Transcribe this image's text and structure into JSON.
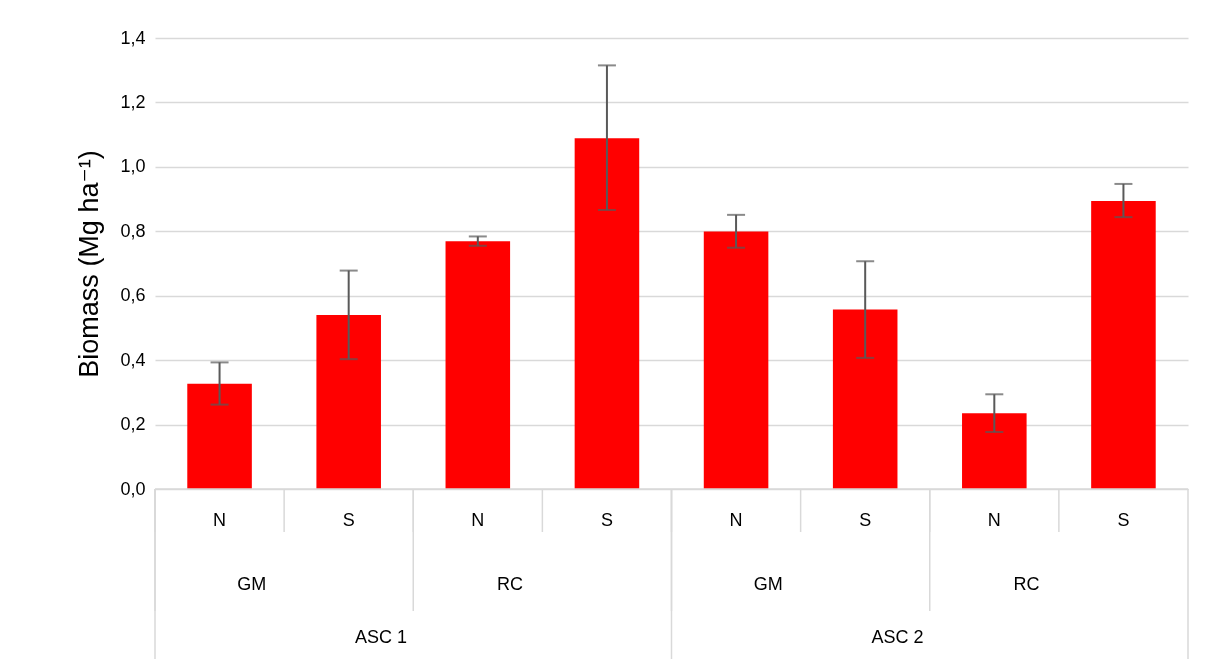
{
  "chart_data": {
    "type": "bar",
    "ylabel": "Biomass (Mg ha⁻¹)",
    "categories": [
      "N",
      "S",
      "N",
      "S",
      "N",
      "S",
      "N",
      "S"
    ],
    "values": [
      0.327,
      0.54,
      0.769,
      1.089,
      0.799,
      0.557,
      0.235,
      0.894
    ],
    "errors": [
      [
        0.262,
        0.393
      ],
      [
        0.403,
        0.678
      ],
      [
        0.755,
        0.784
      ],
      [
        0.866,
        1.315
      ],
      [
        0.749,
        0.851
      ],
      [
        0.407,
        0.707
      ],
      [
        0.177,
        0.294
      ],
      [
        0.844,
        0.947
      ]
    ],
    "color": "#ff0000",
    "ylim": [
      0,
      1.4
    ],
    "yticks": [
      {
        "value": 0,
        "label": "0,0"
      },
      {
        "value": 0.2,
        "label": "0,2"
      },
      {
        "value": 0.4,
        "label": "0,4"
      },
      {
        "value": 0.6,
        "label": "0,6"
      },
      {
        "value": 0.8,
        "label": "0,8"
      },
      {
        "value": 1.0,
        "label": "1,0"
      },
      {
        "value": 1.2,
        "label": "1,2"
      },
      {
        "value": 1.4,
        "label": "1,4"
      }
    ],
    "grid": "y",
    "annotations": [
      "GM",
      "RC",
      "GM",
      "RC",
      "ASC 1",
      "ASC 2"
    ]
  }
}
